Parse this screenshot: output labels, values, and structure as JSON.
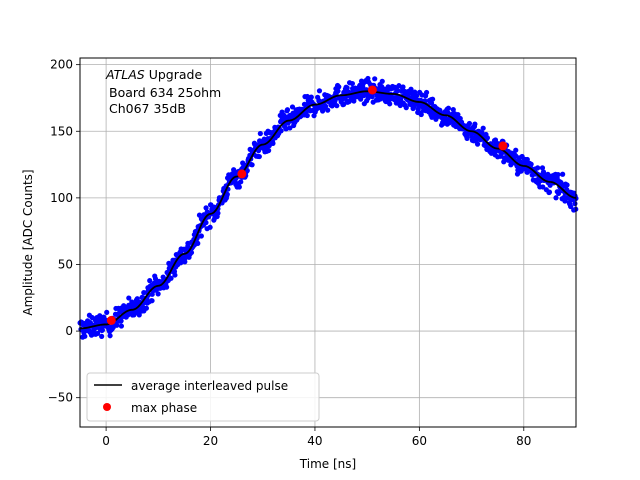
{
  "chart_data": {
    "type": "scatter",
    "xlabel": "Time [ns]",
    "ylabel": "Amplitude [ADC Counts]",
    "xlim": [
      -5,
      90
    ],
    "ylim": [
      -72,
      205
    ],
    "xticks": [
      0,
      20,
      40,
      60,
      80
    ],
    "yticks": [
      -50,
      0,
      50,
      100,
      150,
      200
    ],
    "grid": true,
    "annotation": {
      "line1_italic": "ATLAS",
      "line1_rest": " Upgrade",
      "line2": "Board 634 25ohm",
      "line3": "Ch067 35dB"
    },
    "legend": {
      "placement": "lower-left",
      "entries": [
        {
          "label": "average interleaved pulse",
          "marker": "line",
          "color": "#000000"
        },
        {
          "label": "max phase",
          "marker": "circle",
          "color": "#ff0000"
        }
      ]
    },
    "pulse_model": {
      "description_of_curve": "average interleaved pulse",
      "points": [
        [
          -5,
          2
        ],
        [
          0,
          5
        ],
        [
          5,
          16
        ],
        [
          10,
          34
        ],
        [
          15,
          58
        ],
        [
          20,
          88
        ],
        [
          25,
          116
        ],
        [
          30,
          140
        ],
        [
          35,
          158
        ],
        [
          40,
          170
        ],
        [
          45,
          177
        ],
        [
          50,
          180
        ],
        [
          55,
          178
        ],
        [
          60,
          172
        ],
        [
          65,
          162
        ],
        [
          70,
          150
        ],
        [
          75,
          137
        ],
        [
          80,
          124
        ],
        [
          85,
          112
        ],
        [
          90,
          100
        ]
      ]
    },
    "series": [
      {
        "name": "average interleaved pulse",
        "color": "#000000",
        "x": [
          -5,
          0,
          5,
          10,
          15,
          20,
          25,
          30,
          35,
          40,
          45,
          50,
          55,
          60,
          65,
          70,
          75,
          80,
          85,
          90
        ],
        "y": [
          2,
          5,
          16,
          34,
          58,
          88,
          116,
          140,
          158,
          170,
          177,
          180,
          178,
          172,
          162,
          150,
          137,
          124,
          112,
          100
        ]
      },
      {
        "name": "max phase",
        "color": "#ff0000",
        "x": [
          1,
          26,
          51,
          76
        ],
        "y": [
          8,
          118,
          181,
          139
        ]
      }
    ],
    "samples_color": "#0000ff",
    "samples_count": 1200,
    "noise_amplitude": 4
  }
}
